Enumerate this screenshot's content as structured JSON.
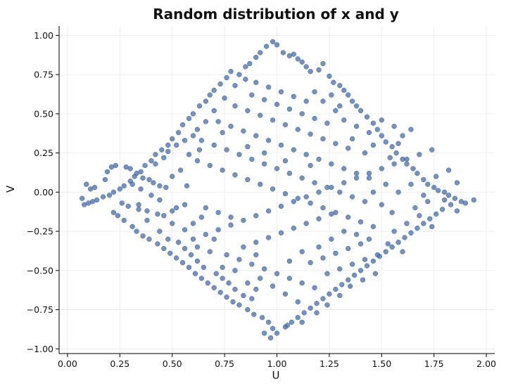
{
  "chart_data": {
    "type": "scatter",
    "title": "Random distribution of x and y",
    "xlabel": "U",
    "ylabel": "V",
    "xlim": [
      -0.04,
      2.04
    ],
    "ylim": [
      -1.03,
      1.06
    ],
    "xticks": [
      0.0,
      0.25,
      0.5,
      0.75,
      1.0,
      1.25,
      1.5,
      1.75,
      2.0
    ],
    "xtick_labels": [
      "0.00",
      "0.25",
      "0.50",
      "0.75",
      "1.00",
      "1.25",
      "1.50",
      "1.75",
      "2.00"
    ],
    "yticks": [
      -1.0,
      -0.75,
      -0.5,
      -0.25,
      0.0,
      0.25,
      0.5,
      0.75,
      1.0
    ],
    "ytick_labels": [
      "−1.00",
      "−0.75",
      "−0.50",
      "−0.25",
      "0.00",
      "0.25",
      "0.50",
      "0.75",
      "1.00"
    ],
    "grid": true,
    "point_color": "#4c72b0",
    "points": [
      [
        0.98,
        0.96
      ],
      [
        1.0,
        0.94
      ],
      [
        0.95,
        0.93
      ],
      [
        1.03,
        0.89
      ],
      [
        1.06,
        0.87
      ],
      [
        1.08,
        0.88
      ],
      [
        0.92,
        0.89
      ],
      [
        1.1,
        0.85
      ],
      [
        0.9,
        0.86
      ],
      [
        1.12,
        0.83
      ],
      [
        0.87,
        0.82
      ],
      [
        1.14,
        0.8
      ],
      [
        1.16,
        0.77
      ],
      [
        0.85,
        0.8
      ],
      [
        1.2,
        0.78
      ],
      [
        1.22,
        0.82
      ],
      [
        0.82,
        0.75
      ],
      [
        1.25,
        0.74
      ],
      [
        0.78,
        0.77
      ],
      [
        1.27,
        0.7
      ],
      [
        0.76,
        0.73
      ],
      [
        1.3,
        0.68
      ],
      [
        0.73,
        0.69
      ],
      [
        1.32,
        0.65
      ],
      [
        0.7,
        0.65
      ],
      [
        1.34,
        0.62
      ],
      [
        0.68,
        0.62
      ],
      [
        1.36,
        0.58
      ],
      [
        0.66,
        0.58
      ],
      [
        1.38,
        0.55
      ],
      [
        0.63,
        0.55
      ],
      [
        1.4,
        0.52
      ],
      [
        0.6,
        0.5
      ],
      [
        1.43,
        0.48
      ],
      [
        0.58,
        0.47
      ],
      [
        1.46,
        0.44
      ],
      [
        0.55,
        0.43
      ],
      [
        1.48,
        0.4
      ],
      [
        0.53,
        0.38
      ],
      [
        1.5,
        0.36
      ],
      [
        0.5,
        0.34
      ],
      [
        1.52,
        0.32
      ],
      [
        0.48,
        0.3
      ],
      [
        1.55,
        0.29
      ],
      [
        0.45,
        0.27
      ],
      [
        1.57,
        0.25
      ],
      [
        0.42,
        0.24
      ],
      [
        1.6,
        0.21
      ],
      [
        0.4,
        0.2
      ],
      [
        1.62,
        0.18
      ],
      [
        0.37,
        0.17
      ],
      [
        1.65,
        0.15
      ],
      [
        0.35,
        0.13
      ],
      [
        1.67,
        0.12
      ],
      [
        0.32,
        0.1
      ],
      [
        1.7,
        0.08
      ],
      [
        0.3,
        0.07
      ],
      [
        1.72,
        0.05
      ],
      [
        0.27,
        0.04
      ],
      [
        1.75,
        0.03
      ],
      [
        0.25,
        0.02
      ],
      [
        1.77,
        0.01
      ],
      [
        0.22,
        0.0
      ],
      [
        1.8,
        0.0
      ],
      [
        0.2,
        -0.02
      ],
      [
        1.82,
        -0.02
      ],
      [
        0.17,
        -0.03
      ],
      [
        1.85,
        -0.04
      ],
      [
        0.14,
        -0.05
      ],
      [
        1.88,
        -0.06
      ],
      [
        0.12,
        -0.06
      ],
      [
        1.9,
        -0.07
      ],
      [
        0.1,
        -0.07
      ],
      [
        1.94,
        -0.05
      ],
      [
        0.07,
        -0.04
      ],
      [
        0.09,
        0.05
      ],
      [
        0.11,
        0.02
      ],
      [
        0.08,
        -0.08
      ],
      [
        0.13,
        0.03
      ],
      [
        0.18,
        0.08
      ],
      [
        0.19,
        0.13
      ],
      [
        0.21,
        0.16
      ],
      [
        0.23,
        0.17
      ],
      [
        0.28,
        0.16
      ],
      [
        0.3,
        0.15
      ],
      [
        0.33,
        0.12
      ],
      [
        0.36,
        0.09
      ],
      [
        0.39,
        0.08
      ],
      [
        0.41,
        0.06
      ],
      [
        0.44,
        0.04
      ],
      [
        0.47,
        0.03
      ],
      [
        0.31,
        0.05
      ],
      [
        0.35,
        0.02
      ],
      [
        0.26,
        -0.07
      ],
      [
        0.29,
        -0.09
      ],
      [
        0.34,
        -0.11
      ],
      [
        0.38,
        -0.12
      ],
      [
        0.43,
        -0.14
      ],
      [
        0.46,
        -0.15
      ],
      [
        0.5,
        -0.12
      ],
      [
        0.52,
        -0.1
      ],
      [
        0.56,
        -0.08
      ],
      [
        0.22,
        -0.13
      ],
      [
        0.24,
        -0.15
      ],
      [
        0.27,
        -0.18
      ],
      [
        0.31,
        -0.22
      ],
      [
        0.33,
        -0.25
      ],
      [
        0.36,
        -0.28
      ],
      [
        0.39,
        -0.3
      ],
      [
        0.43,
        -0.33
      ],
      [
        0.46,
        -0.36
      ],
      [
        0.49,
        -0.39
      ],
      [
        0.52,
        -0.42
      ],
      [
        0.55,
        -0.45
      ],
      [
        0.58,
        -0.48
      ],
      [
        0.61,
        -0.52
      ],
      [
        0.64,
        -0.55
      ],
      [
        0.67,
        -0.58
      ],
      [
        0.7,
        -0.61
      ],
      [
        0.73,
        -0.64
      ],
      [
        0.76,
        -0.67
      ],
      [
        0.79,
        -0.7
      ],
      [
        0.82,
        -0.72
      ],
      [
        0.86,
        -0.75
      ],
      [
        0.89,
        -0.78
      ],
      [
        0.93,
        -0.8
      ],
      [
        0.96,
        -0.83
      ],
      [
        0.98,
        -0.87
      ],
      [
        1.0,
        -0.9
      ],
      [
        0.97,
        -0.93
      ],
      [
        0.94,
        -0.9
      ],
      [
        1.04,
        -0.86
      ],
      [
        1.07,
        -0.83
      ],
      [
        1.1,
        -0.8
      ],
      [
        1.13,
        -0.77
      ],
      [
        1.16,
        -0.74
      ],
      [
        1.19,
        -0.71
      ],
      [
        1.22,
        -0.68
      ],
      [
        1.25,
        -0.65
      ],
      [
        1.28,
        -0.62
      ],
      [
        1.31,
        -0.59
      ],
      [
        1.34,
        -0.56
      ],
      [
        1.37,
        -0.53
      ],
      [
        1.4,
        -0.5
      ],
      [
        1.43,
        -0.47
      ],
      [
        1.46,
        -0.44
      ],
      [
        1.49,
        -0.41
      ],
      [
        1.52,
        -0.38
      ],
      [
        1.55,
        -0.35
      ],
      [
        1.58,
        -0.32
      ],
      [
        1.61,
        -0.29
      ],
      [
        1.64,
        -0.26
      ],
      [
        1.67,
        -0.23
      ],
      [
        1.7,
        -0.2
      ],
      [
        1.73,
        -0.17
      ],
      [
        1.76,
        -0.14
      ],
      [
        1.79,
        -0.11
      ],
      [
        1.83,
        -0.08
      ],
      [
        1.86,
        -0.12
      ],
      [
        1.6,
        -0.38
      ],
      [
        1.53,
        -0.33
      ],
      [
        1.47,
        -0.52
      ],
      [
        1.41,
        -0.56
      ],
      [
        1.35,
        -0.6
      ],
      [
        1.3,
        -0.66
      ],
      [
        1.24,
        -0.72
      ],
      [
        1.19,
        -0.77
      ],
      [
        1.12,
        -0.83
      ],
      [
        1.05,
        -0.85
      ],
      [
        0.88,
        -0.68
      ],
      [
        0.84,
        -0.66
      ],
      [
        0.8,
        -0.62
      ],
      [
        0.77,
        -0.58
      ],
      [
        0.74,
        -0.55
      ],
      [
        0.71,
        -0.52
      ],
      [
        0.65,
        -0.48
      ],
      [
        0.62,
        -0.44
      ],
      [
        0.59,
        -0.4
      ],
      [
        0.56,
        -0.36
      ],
      [
        0.53,
        -0.32
      ],
      [
        0.6,
        -0.3
      ],
      [
        0.66,
        -0.27
      ],
      [
        0.72,
        -0.24
      ],
      [
        0.78,
        -0.21
      ],
      [
        0.84,
        -0.18
      ],
      [
        0.9,
        -0.15
      ],
      [
        0.96,
        -0.12
      ],
      [
        1.02,
        -0.09
      ],
      [
        1.08,
        -0.06
      ],
      [
        1.14,
        -0.03
      ],
      [
        1.2,
        0.0
      ],
      [
        1.26,
        0.03
      ],
      [
        1.32,
        0.06
      ],
      [
        1.38,
        0.09
      ],
      [
        1.44,
        0.12
      ],
      [
        1.5,
        0.15
      ],
      [
        1.56,
        0.18
      ],
      [
        1.62,
        0.21
      ],
      [
        1.68,
        0.24
      ],
      [
        1.74,
        0.27
      ],
      [
        0.62,
        0.2
      ],
      [
        0.68,
        0.17
      ],
      [
        0.74,
        0.14
      ],
      [
        0.8,
        0.11
      ],
      [
        0.86,
        0.08
      ],
      [
        0.92,
        0.05
      ],
      [
        0.98,
        0.02
      ],
      [
        1.04,
        -0.01
      ],
      [
        1.1,
        -0.04
      ],
      [
        1.16,
        -0.07
      ],
      [
        1.22,
        -0.1
      ],
      [
        1.28,
        -0.13
      ],
      [
        1.34,
        -0.16
      ],
      [
        1.4,
        -0.19
      ],
      [
        1.46,
        -0.22
      ],
      [
        0.6,
        0.36
      ],
      [
        0.64,
        0.33
      ],
      [
        0.7,
        0.3
      ],
      [
        0.76,
        0.27
      ],
      [
        0.82,
        0.24
      ],
      [
        0.88,
        0.21
      ],
      [
        0.94,
        0.18
      ],
      [
        1.0,
        0.15
      ],
      [
        1.06,
        0.12
      ],
      [
        1.12,
        0.09
      ],
      [
        1.18,
        0.06
      ],
      [
        1.24,
        0.03
      ],
      [
        1.3,
        0.0
      ],
      [
        1.36,
        -0.03
      ],
      [
        1.42,
        -0.06
      ],
      [
        0.72,
        0.45
      ],
      [
        0.78,
        0.42
      ],
      [
        0.84,
        0.39
      ],
      [
        0.9,
        0.36
      ],
      [
        0.96,
        0.33
      ],
      [
        1.02,
        0.3
      ],
      [
        1.08,
        0.27
      ],
      [
        1.14,
        0.24
      ],
      [
        1.2,
        0.21
      ],
      [
        1.26,
        0.18
      ],
      [
        1.32,
        0.15
      ],
      [
        1.38,
        0.12
      ],
      [
        1.44,
        0.09
      ],
      [
        0.8,
        0.55
      ],
      [
        0.86,
        0.52
      ],
      [
        0.92,
        0.49
      ],
      [
        0.98,
        0.46
      ],
      [
        1.04,
        0.43
      ],
      [
        1.1,
        0.4
      ],
      [
        1.16,
        0.37
      ],
      [
        1.22,
        0.34
      ],
      [
        1.28,
        0.31
      ],
      [
        1.34,
        0.28
      ],
      [
        0.88,
        0.62
      ],
      [
        0.94,
        0.59
      ],
      [
        1.0,
        0.56
      ],
      [
        1.06,
        0.53
      ],
      [
        1.12,
        0.5
      ],
      [
        1.18,
        0.47
      ],
      [
        1.24,
        0.44
      ],
      [
        0.9,
        0.7
      ],
      [
        0.96,
        0.67
      ],
      [
        1.02,
        0.64
      ],
      [
        1.08,
        0.61
      ],
      [
        1.14,
        0.58
      ],
      [
        0.66,
        -0.1
      ],
      [
        0.72,
        -0.13
      ],
      [
        0.78,
        -0.16
      ],
      [
        0.84,
        -0.35
      ],
      [
        0.9,
        -0.32
      ],
      [
        0.96,
        -0.29
      ],
      [
        1.02,
        -0.26
      ],
      [
        1.08,
        -0.23
      ],
      [
        1.14,
        -0.2
      ],
      [
        1.2,
        -0.17
      ],
      [
        1.26,
        -0.14
      ],
      [
        0.76,
        -0.4
      ],
      [
        0.82,
        -0.43
      ],
      [
        0.88,
        -0.46
      ],
      [
        0.94,
        -0.49
      ],
      [
        1.0,
        -0.52
      ],
      [
        1.06,
        -0.55
      ],
      [
        1.12,
        -0.58
      ],
      [
        1.18,
        -0.61
      ],
      [
        1.24,
        -0.52
      ],
      [
        1.3,
        -0.49
      ],
      [
        1.36,
        -0.46
      ],
      [
        1.42,
        -0.43
      ],
      [
        1.48,
        -0.4
      ],
      [
        0.7,
        -0.3
      ],
      [
        0.92,
        -0.55
      ],
      [
        0.98,
        -0.6
      ],
      [
        1.04,
        -0.65
      ],
      [
        1.1,
        -0.7
      ],
      [
        0.9,
        -0.4
      ],
      [
        1.16,
        -0.45
      ],
      [
        1.22,
        -0.42
      ],
      [
        1.28,
        -0.39
      ],
      [
        1.34,
        -0.36
      ],
      [
        1.4,
        -0.33
      ],
      [
        0.5,
        0.1
      ],
      [
        0.54,
        0.14
      ],
      [
        0.44,
        -0.05
      ],
      [
        0.4,
        -0.02
      ],
      [
        0.58,
        0.24
      ],
      [
        0.63,
        0.27
      ],
      [
        0.57,
        0.04
      ],
      [
        1.58,
        0.0
      ],
      [
        1.64,
        0.05
      ],
      [
        1.7,
        -0.02
      ],
      [
        1.76,
        0.1
      ],
      [
        1.82,
        0.14
      ],
      [
        1.86,
        0.06
      ],
      [
        1.8,
        -0.05
      ],
      [
        1.66,
        -0.1
      ],
      [
        1.72,
        -0.06
      ],
      [
        1.55,
        -0.13
      ],
      [
        1.5,
        -0.08
      ],
      [
        1.52,
        0.05
      ],
      [
        1.46,
        0.0
      ],
      [
        1.54,
        0.22
      ],
      [
        1.58,
        0.31
      ],
      [
        1.6,
        0.36
      ],
      [
        1.64,
        0.4
      ],
      [
        1.5,
        0.46
      ],
      [
        1.56,
        0.42
      ],
      [
        1.44,
        0.38
      ],
      [
        1.38,
        0.42
      ],
      [
        1.32,
        0.46
      ],
      [
        1.28,
        0.52
      ],
      [
        1.22,
        0.58
      ],
      [
        1.18,
        0.64
      ],
      [
        1.26,
        0.62
      ],
      [
        1.3,
        0.55
      ],
      [
        0.7,
        0.52
      ],
      [
        0.66,
        0.45
      ],
      [
        0.62,
        0.4
      ],
      [
        0.56,
        0.33
      ],
      [
        0.52,
        0.3
      ],
      [
        0.48,
        0.26
      ],
      [
        0.46,
        0.22
      ],
      [
        0.42,
        0.18
      ],
      [
        0.75,
        0.6
      ],
      [
        0.8,
        0.68
      ],
      [
        0.85,
        0.72
      ],
      [
        0.74,
        0.38
      ],
      [
        0.86,
        0.29
      ],
      [
        0.94,
        0.25
      ],
      [
        1.04,
        0.2
      ],
      [
        1.16,
        0.17
      ],
      [
        1.42,
        0.25
      ],
      [
        1.46,
        0.3
      ],
      [
        1.36,
        0.34
      ],
      [
        0.6,
        -0.2
      ],
      [
        0.64,
        -0.16
      ],
      [
        0.56,
        -0.24
      ],
      [
        0.5,
        -0.2
      ],
      [
        0.44,
        -0.25
      ],
      [
        0.38,
        -0.18
      ],
      [
        0.34,
        -0.08
      ],
      [
        0.48,
        -0.3
      ],
      [
        0.62,
        -0.35
      ],
      [
        0.68,
        -0.38
      ],
      [
        0.74,
        -0.48
      ],
      [
        0.8,
        -0.5
      ],
      [
        0.86,
        -0.58
      ],
      [
        0.9,
        -0.62
      ],
      [
        1.06,
        -0.44
      ],
      [
        1.12,
        -0.38
      ],
      [
        1.2,
        -0.35
      ],
      [
        1.26,
        -0.3
      ],
      [
        1.32,
        -0.25
      ],
      [
        1.38,
        -0.27
      ],
      [
        1.44,
        -0.3
      ],
      [
        1.56,
        -0.25
      ],
      [
        1.62,
        -0.2
      ],
      [
        1.68,
        -0.15
      ],
      [
        1.74,
        -0.22
      ]
    ]
  }
}
